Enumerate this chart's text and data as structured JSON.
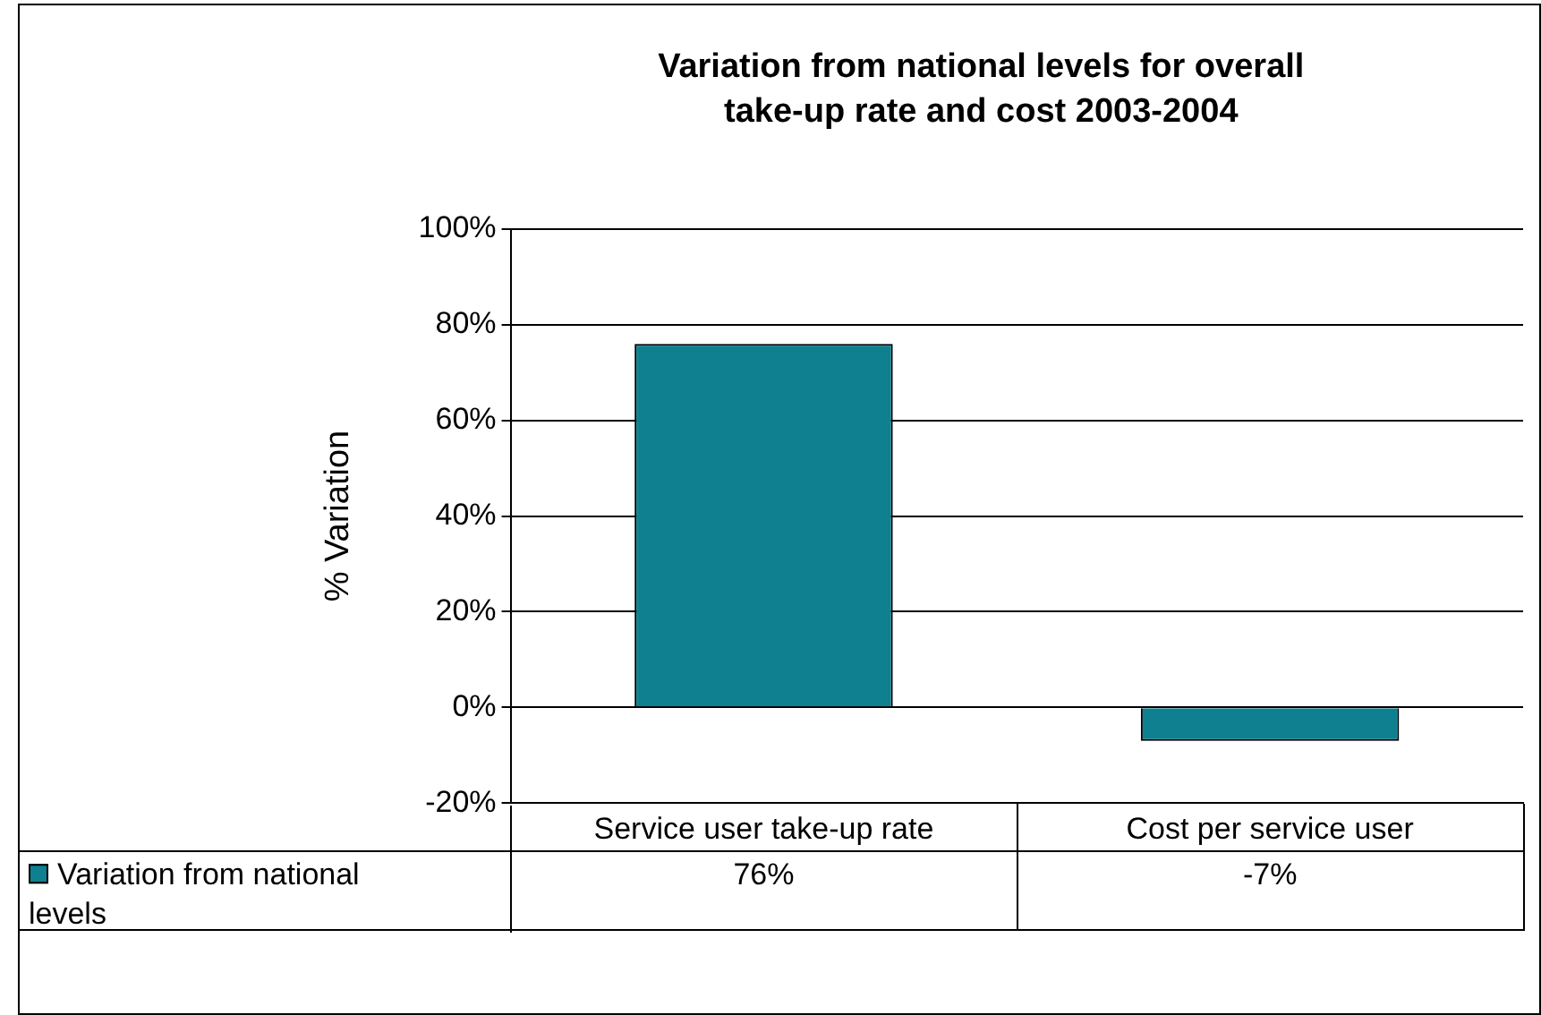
{
  "chart_data": {
    "type": "bar",
    "title": "Variation from national levels for overall take-up rate and cost 2003-2004",
    "ylabel": "% Variation",
    "categories": [
      "Service user take-up rate",
      "Cost per service user"
    ],
    "series": [
      {
        "name": "Variation from national levels",
        "color": "#0f8090",
        "values": [
          76,
          -7
        ],
        "value_labels": [
          "76%",
          "-7%"
        ]
      }
    ],
    "ylim": [
      -20,
      100
    ],
    "yticks": [
      {
        "value": -20,
        "label": "-20%"
      },
      {
        "value": 0,
        "label": "0%"
      },
      {
        "value": 20,
        "label": "20%"
      },
      {
        "value": 40,
        "label": "40%"
      },
      {
        "value": 60,
        "label": "60%"
      },
      {
        "value": 80,
        "label": "80%"
      },
      {
        "value": 100,
        "label": "100%"
      }
    ],
    "grid": "y",
    "legend": "bottom"
  }
}
